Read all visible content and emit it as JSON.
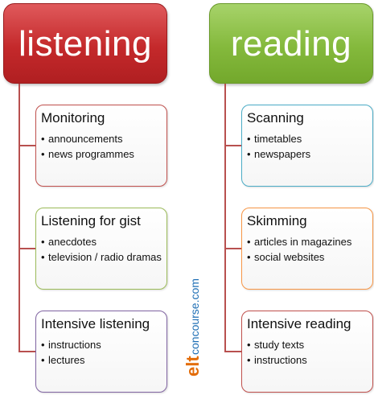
{
  "left_header": "listening",
  "right_header": "reading",
  "left_cards": [
    {
      "title": "Monitoring",
      "items": [
        "announcements",
        "news programmes"
      ]
    },
    {
      "title": "Listening for gist",
      "items": [
        "anecdotes",
        "television / radio dramas"
      ]
    },
    {
      "title": "Intensive listening",
      "items": [
        "instructions",
        "lectures"
      ]
    }
  ],
  "right_cards": [
    {
      "title": "Scanning",
      "items": [
        "timetables",
        "newspapers"
      ]
    },
    {
      "title": "Skimming",
      "items": [
        "articles in magazines",
        "social websites"
      ]
    },
    {
      "title": "Intensive reading",
      "items": [
        "study texts",
        "instructions"
      ]
    }
  ],
  "logo": {
    "elt": "elt",
    "concourse": "concourse.com"
  },
  "colors": {
    "listening_header": "#c4292b",
    "reading_header": "#84b93c",
    "connector": "#b8504f",
    "logo_elt": "#e36c09",
    "logo_concourse": "#1f6fb5"
  }
}
